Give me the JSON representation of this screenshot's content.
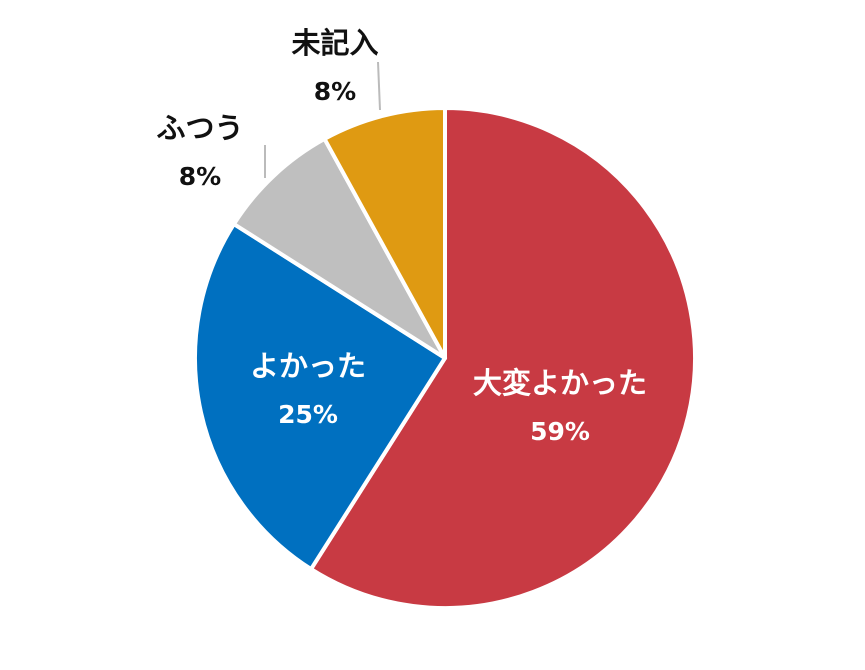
{
  "chart_data": {
    "type": "pie",
    "categories": [
      "大変よかった",
      "よかった",
      "ふつう",
      "未記入"
    ],
    "values": [
      59,
      25,
      8,
      8
    ],
    "value_labels": [
      "59%",
      "25%",
      "8%",
      "8%"
    ],
    "colors": [
      "#c83a43",
      "#0070c0",
      "#bfbfbf",
      "#df9a12"
    ]
  }
}
